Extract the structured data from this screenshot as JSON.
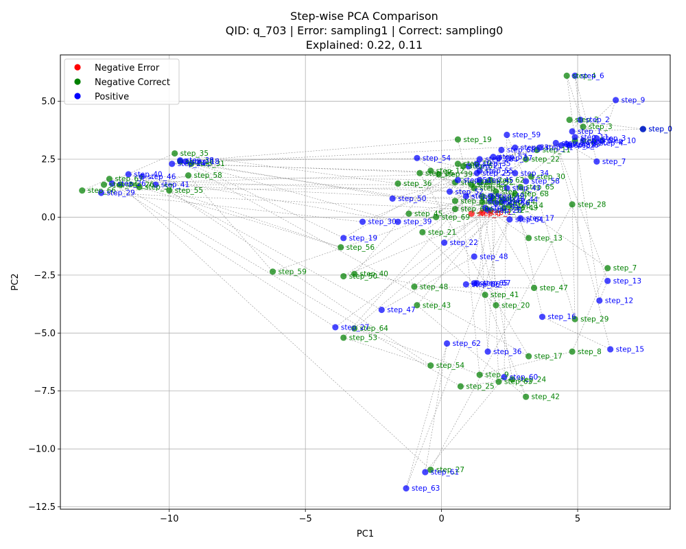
{
  "chart_data": {
    "type": "scatter",
    "title_lines": [
      "Step-wise PCA Comparison",
      "QID: q_703 | Error: sampling1 | Correct: sampling0",
      "Explained: 0.22, 0.11"
    ],
    "xlabel": "PC1",
    "ylabel": "PC2",
    "xlim": [
      -14.0,
      8.4
    ],
    "ylim": [
      -12.6,
      7.0
    ],
    "xticks": [
      -10,
      -5,
      0,
      5
    ],
    "yticks": [
      -12.5,
      -10.0,
      -7.5,
      -5.0,
      -2.5,
      0.0,
      2.5,
      5.0
    ],
    "xtick_labels": [
      "−10",
      "−5",
      "0",
      "5"
    ],
    "ytick_labels": [
      "−12.5",
      "−10.0",
      "−7.5",
      "−5.0",
      "−2.5",
      "0.0",
      "2.5",
      "5.0"
    ],
    "grid": true,
    "legend_position": "upper-left",
    "colors": {
      "Negative Error": "#ff0000",
      "Negative Correct": "#008000",
      "Positive": "#0000ff"
    },
    "series": [
      {
        "name": "Negative Error",
        "color": "#ff0000",
        "points": [
          {
            "label": "step_0",
            "x": 1.1,
            "y": 0.15
          },
          {
            "label": "step_1",
            "x": 1.5,
            "y": 0.2
          }
        ]
      },
      {
        "name": "Negative Correct",
        "color": "#008000",
        "points": [
          {
            "label": "step_0",
            "x": 7.4,
            "y": 3.8
          },
          {
            "label": "step_2",
            "x": 4.7,
            "y": 4.2
          },
          {
            "label": "step_3",
            "x": 5.2,
            "y": 3.9
          },
          {
            "label": "step_4",
            "x": 4.6,
            "y": 6.1
          },
          {
            "label": "step_5",
            "x": 4.9,
            "y": 3.3
          },
          {
            "label": "step_6",
            "x": 0.8,
            "y": 2.2
          },
          {
            "label": "step_7",
            "x": 6.1,
            "y": -2.2
          },
          {
            "label": "step_8",
            "x": 4.8,
            "y": -5.8
          },
          {
            "label": "step_9",
            "x": 1.4,
            "y": -6.8
          },
          {
            "label": "step_10",
            "x": 0.6,
            "y": 2.3
          },
          {
            "label": "step_11",
            "x": 3.5,
            "y": 2.9
          },
          {
            "label": "step_12",
            "x": -0.4,
            "y": 2.0
          },
          {
            "label": "step_13",
            "x": 3.2,
            "y": -0.9
          },
          {
            "label": "step_14",
            "x": 2.5,
            "y": 0.5
          },
          {
            "label": "step_15",
            "x": 2.0,
            "y": 1.1
          },
          {
            "label": "step_16",
            "x": -0.8,
            "y": 1.9
          },
          {
            "label": "step_17",
            "x": 3.2,
            "y": -6.0
          },
          {
            "label": "step_18",
            "x": -9.6,
            "y": 2.4
          },
          {
            "label": "step_19",
            "x": 0.6,
            "y": 3.35
          },
          {
            "label": "step_20",
            "x": 2.0,
            "y": -3.8
          },
          {
            "label": "step_21",
            "x": -0.7,
            "y": -0.65
          },
          {
            "label": "step_22",
            "x": 3.1,
            "y": 2.5
          },
          {
            "label": "step_23",
            "x": 1.5,
            "y": 0.65
          },
          {
            "label": "step_24",
            "x": 2.6,
            "y": -7.0
          },
          {
            "label": "step_25",
            "x": 0.7,
            "y": -7.3
          },
          {
            "label": "step_26",
            "x": -11.8,
            "y": 1.4
          },
          {
            "label": "step_27",
            "x": -0.4,
            "y": -10.9
          },
          {
            "label": "step_28",
            "x": 4.8,
            "y": 0.55
          },
          {
            "label": "step_29",
            "x": 4.9,
            "y": -4.4
          },
          {
            "label": "step_30",
            "x": 3.3,
            "y": 1.75
          },
          {
            "label": "step_31",
            "x": -9.2,
            "y": 2.3
          },
          {
            "label": "step_32",
            "x": 1.8,
            "y": 0.3
          },
          {
            "label": "step_33",
            "x": 1.1,
            "y": 1.4
          },
          {
            "label": "step_34",
            "x": -12.4,
            "y": 1.4
          },
          {
            "label": "step_35",
            "x": -9.8,
            "y": 2.75
          },
          {
            "label": "step_36",
            "x": -1.6,
            "y": 1.45
          },
          {
            "label": "step_37",
            "x": 1.9,
            "y": 0.8
          },
          {
            "label": "step_38",
            "x": 0.5,
            "y": 1.5
          },
          {
            "label": "step_39",
            "x": -0.1,
            "y": 1.85
          },
          {
            "label": "step_40",
            "x": -3.2,
            "y": -2.45
          },
          {
            "label": "step_41",
            "x": 1.6,
            "y": -3.35
          },
          {
            "label": "step_42",
            "x": 3.1,
            "y": -7.75
          },
          {
            "label": "step_43",
            "x": -0.9,
            "y": -3.8
          },
          {
            "label": "step_44",
            "x": 2.2,
            "y": 0.65
          },
          {
            "label": "step_45",
            "x": -1.2,
            "y": 0.15
          },
          {
            "label": "step_46",
            "x": 1.5,
            "y": 0.9
          },
          {
            "label": "step_47",
            "x": 3.4,
            "y": -3.05
          },
          {
            "label": "step_48",
            "x": -1.0,
            "y": -3.0
          },
          {
            "label": "step_49",
            "x": 2.3,
            "y": 0.4
          },
          {
            "label": "step_50",
            "x": -3.6,
            "y": -2.55
          },
          {
            "label": "step_51",
            "x": 0.5,
            "y": 0.7
          },
          {
            "label": "step_52",
            "x": 1.4,
            "y": 1.5
          },
          {
            "label": "step_53",
            "x": -3.6,
            "y": -5.2
          },
          {
            "label": "step_54",
            "x": -0.4,
            "y": -6.4
          },
          {
            "label": "step_55",
            "x": -10.0,
            "y": 1.15
          },
          {
            "label": "step_56",
            "x": -3.7,
            "y": -1.3
          },
          {
            "label": "step_57",
            "x": -11.1,
            "y": 1.3
          },
          {
            "label": "step_58",
            "x": -9.3,
            "y": 1.8
          },
          {
            "label": "step_59",
            "x": -6.2,
            "y": -2.35
          },
          {
            "label": "step_60",
            "x": 0.5,
            "y": 0.35
          },
          {
            "label": "step_61",
            "x": 1.2,
            "y": 1.25
          },
          {
            "label": "step_62",
            "x": 1.8,
            "y": 1.6
          },
          {
            "label": "step_63",
            "x": 2.1,
            "y": -7.1
          },
          {
            "label": "step_64",
            "x": -3.2,
            "y": -4.8
          },
          {
            "label": "step_65",
            "x": 2.9,
            "y": 1.3
          },
          {
            "label": "step_66",
            "x": -13.2,
            "y": 1.15
          },
          {
            "label": "step_67",
            "x": -12.2,
            "y": 1.65
          },
          {
            "label": "step_68",
            "x": 2.7,
            "y": 1.0
          },
          {
            "label": "step_69",
            "x": -0.2,
            "y": 0.0
          }
        ]
      },
      {
        "name": "Positive",
        "color": "#0000ff",
        "points": [
          {
            "label": "step_0",
            "x": 7.4,
            "y": 3.8
          },
          {
            "label": "step_1",
            "x": 4.8,
            "y": 3.7
          },
          {
            "label": "step_2",
            "x": 5.1,
            "y": 4.2
          },
          {
            "label": "step_3",
            "x": 5.7,
            "y": 3.4
          },
          {
            "label": "step_4",
            "x": 5.6,
            "y": 3.2
          },
          {
            "label": "step_5",
            "x": 5.2,
            "y": 3.3
          },
          {
            "label": "step_6",
            "x": 4.9,
            "y": 6.1
          },
          {
            "label": "step_7",
            "x": 5.7,
            "y": 2.4
          },
          {
            "label": "step_8",
            "x": 4.7,
            "y": 3.1
          },
          {
            "label": "step_9",
            "x": 6.4,
            "y": 5.05
          },
          {
            "label": "step_10",
            "x": 5.9,
            "y": 3.3
          },
          {
            "label": "step_11",
            "x": 4.9,
            "y": 3.45
          },
          {
            "label": "step_12",
            "x": 5.8,
            "y": -3.6
          },
          {
            "label": "step_13",
            "x": 6.1,
            "y": -2.75
          },
          {
            "label": "step_14",
            "x": 4.2,
            "y": 3.2
          },
          {
            "label": "step_15",
            "x": 6.2,
            "y": -5.7
          },
          {
            "label": "step_16",
            "x": 3.7,
            "y": -4.3
          },
          {
            "label": "step_17",
            "x": 2.9,
            "y": -0.05
          },
          {
            "label": "step_18",
            "x": -9.4,
            "y": 2.4
          },
          {
            "label": "step_19",
            "x": -3.6,
            "y": -0.9
          },
          {
            "label": "step_20",
            "x": 1.4,
            "y": 2.5
          },
          {
            "label": "step_21",
            "x": 1.0,
            "y": 2.2
          },
          {
            "label": "step_22",
            "x": 0.1,
            "y": -1.1
          },
          {
            "label": "step_23",
            "x": 4.6,
            "y": 3.15
          },
          {
            "label": "step_24",
            "x": -9.9,
            "y": 2.3
          },
          {
            "label": "step_25",
            "x": 1.3,
            "y": 1.9
          },
          {
            "label": "step_26",
            "x": -12.1,
            "y": 1.45
          },
          {
            "label": "step_27",
            "x": -3.9,
            "y": -4.75
          },
          {
            "label": "step_28",
            "x": 1.7,
            "y": 0.3
          },
          {
            "label": "step_29",
            "x": -12.5,
            "y": 1.05
          },
          {
            "label": "step_30",
            "x": -2.9,
            "y": -0.2
          },
          {
            "label": "step_31",
            "x": 3.6,
            "y": 3.0
          },
          {
            "label": "step_32",
            "x": 4.4,
            "y": 3.1
          },
          {
            "label": "step_33",
            "x": 2.7,
            "y": 3.0
          },
          {
            "label": "step_34",
            "x": 2.7,
            "y": 1.9
          },
          {
            "label": "step_35",
            "x": 1.3,
            "y": 2.3
          },
          {
            "label": "step_36",
            "x": 1.7,
            "y": -5.8
          },
          {
            "label": "step_37",
            "x": 2.1,
            "y": 2.55
          },
          {
            "label": "step_38",
            "x": -9.6,
            "y": 2.45
          },
          {
            "label": "step_39",
            "x": -1.6,
            "y": -0.2
          },
          {
            "label": "step_40",
            "x": -11.5,
            "y": 1.85
          },
          {
            "label": "step_41",
            "x": -10.5,
            "y": 1.4
          },
          {
            "label": "step_42",
            "x": 1.8,
            "y": 0.7
          },
          {
            "label": "step_43",
            "x": 2.4,
            "y": 1.25
          },
          {
            "label": "step_44",
            "x": 2.3,
            "y": 0.75
          },
          {
            "label": "step_45",
            "x": 1.4,
            "y": 1.6
          },
          {
            "label": "step_46",
            "x": -11.0,
            "y": 1.75
          },
          {
            "label": "step_47",
            "x": -2.2,
            "y": -4.0
          },
          {
            "label": "step_48",
            "x": 1.2,
            "y": -1.7
          },
          {
            "label": "step_49",
            "x": 1.8,
            "y": 0.9
          },
          {
            "label": "step_50",
            "x": -1.8,
            "y": 0.8
          },
          {
            "label": "step_51",
            "x": 0.6,
            "y": 1.6
          },
          {
            "label": "step_52",
            "x": 0.3,
            "y": 1.1
          },
          {
            "label": "step_53",
            "x": 1.6,
            "y": 0.4
          },
          {
            "label": "step_54",
            "x": -0.9,
            "y": 2.55
          },
          {
            "label": "step_55",
            "x": 1.4,
            "y": 2.0
          },
          {
            "label": "step_56",
            "x": 2.0,
            "y": 0.6
          },
          {
            "label": "step_57",
            "x": 1.9,
            "y": 2.6
          },
          {
            "label": "step_58",
            "x": 3.1,
            "y": 1.55
          },
          {
            "label": "step_59",
            "x": 2.4,
            "y": 3.55
          },
          {
            "label": "step_60",
            "x": 2.3,
            "y": -6.9
          },
          {
            "label": "step_61",
            "x": -0.6,
            "y": -11.0
          },
          {
            "label": "step_62",
            "x": 0.2,
            "y": -5.45
          },
          {
            "label": "step_63",
            "x": -1.3,
            "y": -11.7
          },
          {
            "label": "step_64",
            "x": 2.5,
            "y": -0.1
          },
          {
            "label": "step_65",
            "x": 1.2,
            "y": -2.85
          },
          {
            "label": "step_66",
            "x": 0.9,
            "y": -2.9
          },
          {
            "label": "step_67",
            "x": 1.3,
            "y": -2.85
          },
          {
            "label": "step_68",
            "x": 2.2,
            "y": 2.9
          },
          {
            "label": "step_69",
            "x": 0.9,
            "y": 0.9
          }
        ]
      }
    ]
  }
}
